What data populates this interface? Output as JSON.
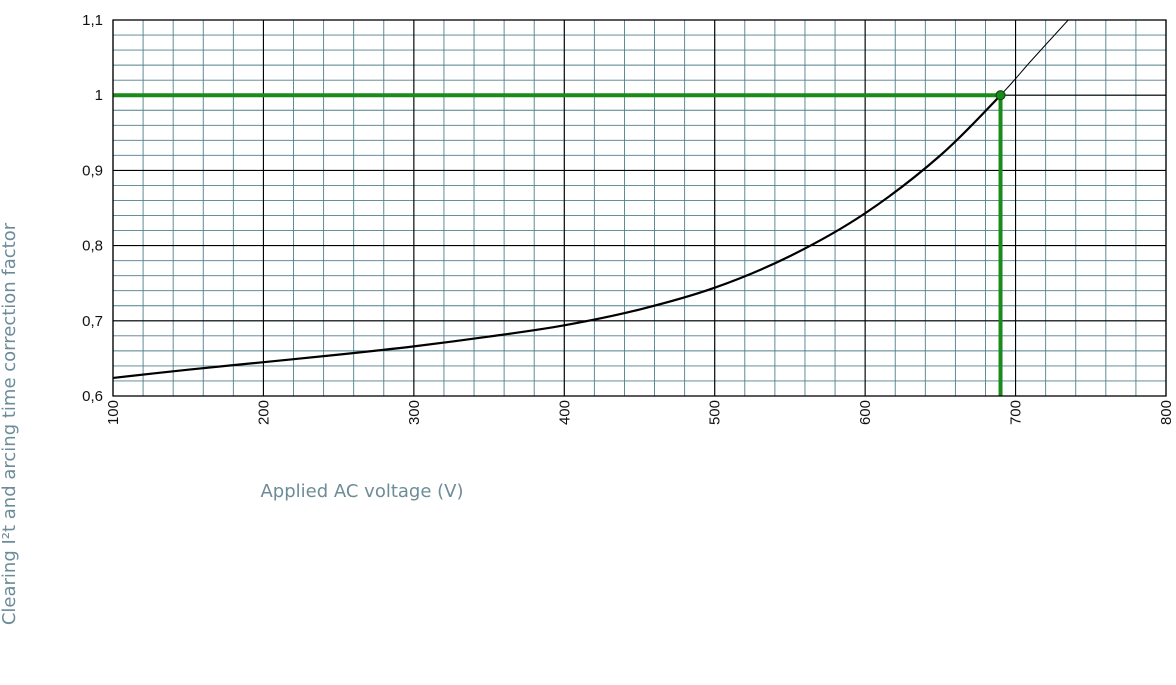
{
  "chart_data": {
    "type": "line",
    "title": "",
    "xlabel": "Applied AC voltage (V)",
    "ylabel": "Clearing I²t and arcing time correction factor",
    "xlim": [
      100,
      800
    ],
    "ylim": [
      0.6,
      1.1
    ],
    "x_ticks": [
      100,
      200,
      300,
      400,
      500,
      600,
      700,
      800
    ],
    "x_tick_labels": [
      "100",
      "200",
      "300",
      "400",
      "500",
      "600",
      "700",
      "800"
    ],
    "y_ticks": [
      0.6,
      0.7,
      0.8,
      0.9,
      1.0,
      1.1
    ],
    "y_tick_labels": [
      "0,6",
      "0,7",
      "0,8",
      "0,9",
      "1",
      "1,1"
    ],
    "grid": {
      "minor": true,
      "x_minor_step": 20,
      "y_minor_step": 0.02,
      "minor_color": "#4f7f8c",
      "major_color": "#000000"
    },
    "series": [
      {
        "name": "",
        "color": "#000000",
        "points": [
          {
            "x": 100,
            "y": 0.624
          },
          {
            "x": 150,
            "y": 0.635
          },
          {
            "x": 200,
            "y": 0.645
          },
          {
            "x": 250,
            "y": 0.655
          },
          {
            "x": 300,
            "y": 0.666
          },
          {
            "x": 350,
            "y": 0.679
          },
          {
            "x": 400,
            "y": 0.694
          },
          {
            "x": 450,
            "y": 0.715
          },
          {
            "x": 500,
            "y": 0.744
          },
          {
            "x": 550,
            "y": 0.786
          },
          {
            "x": 600,
            "y": 0.843
          },
          {
            "x": 650,
            "y": 0.92
          },
          {
            "x": 690,
            "y": 1.0
          },
          {
            "x": 710,
            "y": 1.045
          },
          {
            "x": 735,
            "y": 1.1
          }
        ]
      }
    ],
    "reference": {
      "x": 690,
      "y": 1.0,
      "color": "#1a8a1a"
    }
  }
}
